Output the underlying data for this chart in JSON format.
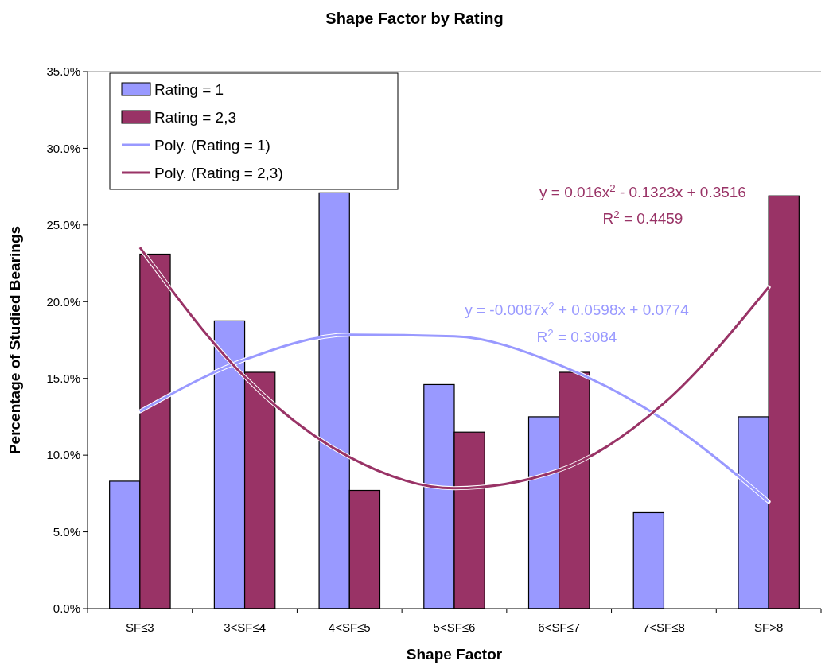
{
  "chart_data": {
    "type": "bar",
    "title": "Shape Factor by Rating",
    "xlabel": "Shape Factor",
    "ylabel": "Percentage of Studied Bearings",
    "categories": [
      "SF≤3",
      "3<SF≤4",
      "4<SF≤5",
      "5<SF≤6",
      "6<SF≤7",
      "7<SF≤8",
      "SF>8"
    ],
    "series": [
      {
        "name": "Rating = 1",
        "color": "#9999ff",
        "values": [
          8.3,
          18.75,
          27.1,
          14.6,
          12.5,
          6.25,
          12.5
        ]
      },
      {
        "name": "Rating = 2,3",
        "color": "#993366",
        "values": [
          23.1,
          15.4,
          7.7,
          11.5,
          15.4,
          0,
          26.9
        ]
      },
      {
        "name": "Poly. (Rating = 1)",
        "type": "line",
        "color": "#9999ff",
        "x": [
          "SF≤3",
          "3<SF≤4",
          "4<SF≤5",
          "5<SF≤6",
          "6<SF≤7",
          "7<SF≤8",
          "SF>8"
        ],
        "values": [
          12.85,
          16.22,
          17.85,
          17.74,
          15.89,
          12.3,
          6.97
        ]
      },
      {
        "name": "Poly. (Rating = 2,3)",
        "type": "line",
        "color": "#993366",
        "x": [
          "SF≤3",
          "3<SF≤4",
          "4<SF≤5",
          "5<SF≤6",
          "6<SF≤7",
          "7<SF≤8",
          "SF>8"
        ],
        "values": [
          23.53,
          15.1,
          9.87,
          7.84,
          9.01,
          13.38,
          20.95
        ]
      }
    ],
    "annotations": [
      "y = 0.016x$^{2}$ - 0.1323x + 0.3516",
      "R$^{2}$ = 0.4459",
      "y = -0.0087x$^{2}$ + 0.0598x + 0.0774",
      "R$^{2}$ = 0.3084"
    ],
    "ylim": [
      0,
      35
    ],
    "yticks": [
      {
        "value": 0,
        "label": "0.0%"
      },
      {
        "value": 5,
        "label": "5.0%"
      },
      {
        "value": 10,
        "label": "10.0%"
      },
      {
        "value": 15,
        "label": "15.0%"
      },
      {
        "value": 20,
        "label": "20.0%"
      },
      {
        "value": 25,
        "label": "25.0%"
      },
      {
        "value": 30,
        "label": "30.0%"
      },
      {
        "value": 35,
        "label": "35.0%"
      }
    ],
    "legend": "top left",
    "grid": false,
    "marker": "none",
    "line_style": "solid"
  }
}
